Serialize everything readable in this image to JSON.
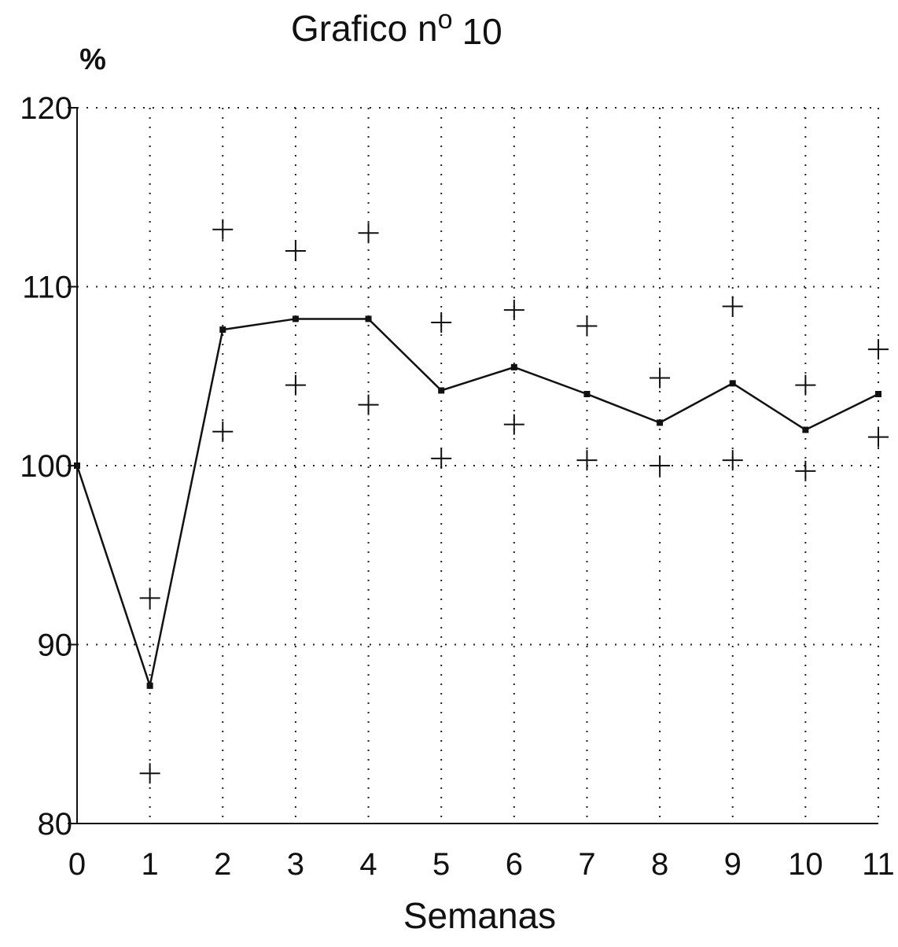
{
  "chart_data": {
    "type": "line",
    "title": "Grafico nº 10",
    "title_main": "Grafico n",
    "title_ordinal": "o",
    "title_number": "10",
    "xlabel": "Semanas",
    "ylabel": "%",
    "x": [
      0,
      1,
      2,
      3,
      4,
      5,
      6,
      7,
      8,
      9,
      10,
      11
    ],
    "xlim": [
      0,
      11
    ],
    "ylim": [
      80,
      120
    ],
    "x_ticks": [
      "0",
      "1",
      "2",
      "3",
      "4",
      "5",
      "6",
      "7",
      "8",
      "9",
      "10",
      "11"
    ],
    "y_ticks": [
      "80",
      "90",
      "100",
      "110",
      "120"
    ],
    "grid": true,
    "series": [
      {
        "values": [
          100,
          87.7,
          107.6,
          108.2,
          108.2,
          104.2,
          105.5,
          104.0,
          102.4,
          104.6,
          102.0,
          104.0
        ],
        "style": "line-with-markers"
      },
      {
        "values": [
          null,
          92.6,
          113.2,
          112.0,
          113.0,
          108.0,
          108.7,
          107.8,
          104.9,
          108.9,
          104.5,
          106.5
        ],
        "style": "plus-markers"
      },
      {
        "values": [
          null,
          82.8,
          101.9,
          104.5,
          103.4,
          100.4,
          102.3,
          100.3,
          100.0,
          100.3,
          99.7,
          101.6
        ],
        "style": "plus-markers"
      }
    ],
    "colors": {
      "line": "#111111",
      "grid": "#222222"
    }
  }
}
